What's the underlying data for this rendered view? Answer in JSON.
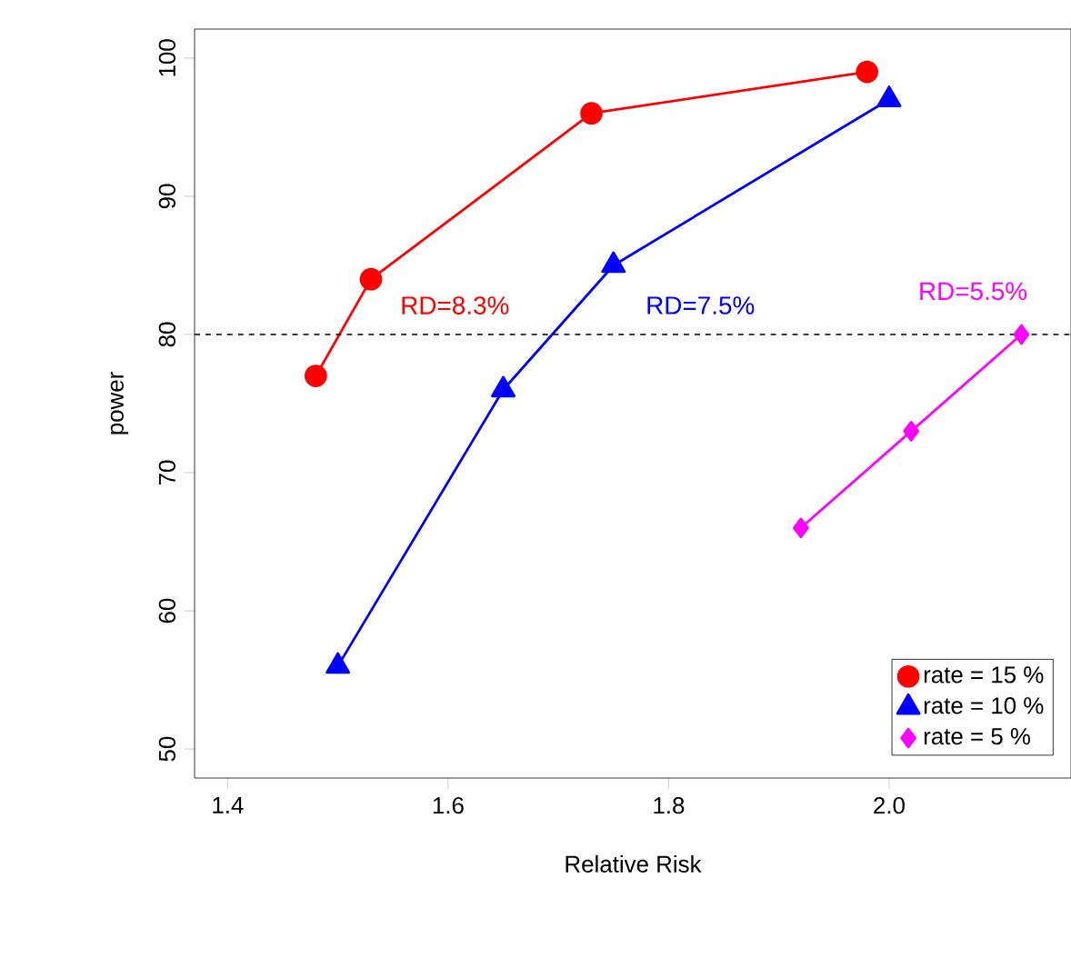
{
  "chart_data": {
    "type": "line",
    "xlabel": "Relative Risk",
    "ylabel": "power",
    "xlim": [
      1.37,
      2.165
    ],
    "ylim": [
      47.9,
      102.1
    ],
    "xticks": [
      1.4,
      1.6,
      1.8,
      {
        "value": 2,
        "label": "2.0"
      }
    ],
    "yticks": [
      50,
      60,
      70,
      80,
      90,
      100
    ],
    "legend": "bottom right",
    "grid": false,
    "line_style": "solid",
    "series": [
      {
        "name": "rate = 15 %",
        "color": "#ff0000",
        "marker": "circle",
        "x": [
          1.48,
          1.53,
          1.73,
          1.98
        ],
        "values": [
          77,
          84,
          96,
          99
        ]
      },
      {
        "name": "rate = 10 %",
        "color": "#0000ff",
        "marker": "triangle",
        "x": [
          1.5,
          1.65,
          1.75,
          2.0
        ],
        "values": [
          56,
          76,
          85,
          97
        ]
      },
      {
        "name": "rate =  5 %",
        "color": "#ff00ff",
        "marker": "diamond",
        "x": [
          1.92,
          2.02,
          2.12
        ],
        "values": [
          66,
          73,
          80
        ]
      }
    ],
    "ref_lines": [
      {
        "axis": "y",
        "value": 80,
        "line_style": "dashed",
        "color": "#000000"
      }
    ],
    "annotations": [
      "RD=8.3%",
      "RD=7.5%",
      "RD=5.5%"
    ]
  }
}
